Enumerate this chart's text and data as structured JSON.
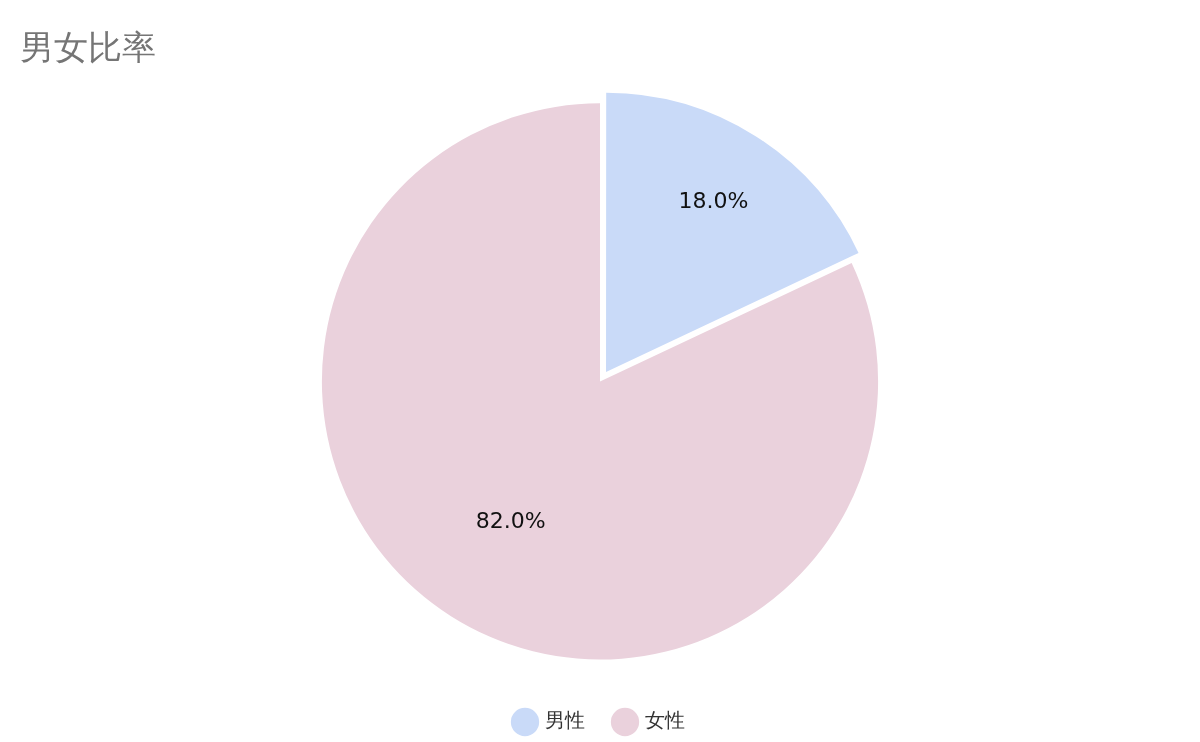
{
  "chart_data": {
    "type": "pie",
    "title": "男女比率",
    "categories": [
      "男性",
      "女性"
    ],
    "values": [
      18.0,
      82.0
    ],
    "colors": [
      "#c9daf8",
      "#ead1dc"
    ],
    "value_labels": [
      "18.0%",
      "82.0%"
    ],
    "legend": "bottom"
  }
}
